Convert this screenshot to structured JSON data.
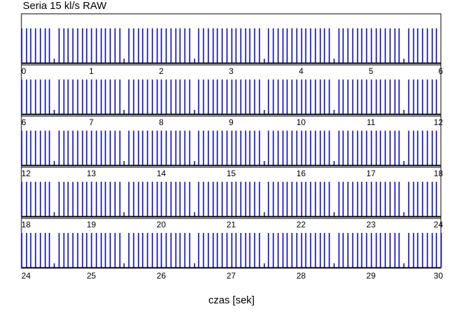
{
  "chart_data": {
    "type": "raster",
    "title": "Seria 15 kl/s RAW",
    "xlabel": "czas [sek]",
    "ylabel": "",
    "colors": {
      "spike": "#0000cc",
      "axis": "#000000",
      "frame": "#000000"
    },
    "grid": false,
    "legend": "none",
    "rows": [
      {
        "xlim": [
          0,
          6
        ],
        "tick_labels": [
          "0",
          "1",
          "2",
          "3",
          "4",
          "5",
          "6"
        ],
        "values": [
          0,
          0.0667,
          0.1333,
          0.2,
          0.2667,
          0.3333,
          0.4,
          0.4667,
          0.5333,
          0.6,
          0.6667,
          0.7333,
          0.8,
          0.8667,
          0.9333,
          1,
          1.0667,
          1.1333,
          1.2,
          1.2667,
          1.3333,
          1.4,
          1.4667,
          1.5333,
          1.6,
          1.6667,
          1.7333,
          1.8,
          1.8667,
          1.9333,
          2,
          2.0667,
          2.1333,
          2.2,
          2.2667,
          2.3333,
          2.4,
          2.4667,
          2.5333,
          2.6,
          2.6667,
          2.7333,
          2.8,
          2.8667,
          2.9333,
          3,
          3.0667,
          3.1333,
          3.2,
          3.2667,
          3.3333,
          3.4,
          3.4667,
          3.5333,
          3.6,
          3.6667,
          3.7333,
          3.8,
          3.8667,
          3.9333,
          4,
          4.0667,
          4.1333,
          4.2,
          4.2667,
          4.3333,
          4.4,
          4.4667,
          4.5333,
          4.6,
          4.6667,
          4.7333,
          4.8,
          4.8667,
          4.9333,
          5,
          5.0667,
          5.1333,
          5.2,
          5.2667,
          5.3333,
          5.4,
          5.4667,
          5.5333,
          5.6,
          5.6667,
          5.7333,
          5.8,
          5.8667,
          5.9333
        ]
      },
      {
        "xlim": [
          6,
          12
        ],
        "tick_labels": [
          "6",
          "7",
          "8",
          "9",
          "10",
          "11",
          "12"
        ],
        "values": [
          6,
          6.0667,
          6.1333,
          6.2,
          6.2667,
          6.3333,
          6.4,
          6.4667,
          6.5333,
          6.6,
          6.6667,
          6.7333,
          6.8,
          6.8667,
          6.9333,
          7,
          7.0667,
          7.1333,
          7.2,
          7.2667,
          7.3333,
          7.4,
          7.4667,
          7.5333,
          7.6,
          7.6667,
          7.7333,
          7.8,
          7.8667,
          7.9333,
          8,
          8.0667,
          8.1333,
          8.2,
          8.2667,
          8.3333,
          8.4,
          8.4667,
          8.5333,
          8.6,
          8.6667,
          8.7333,
          8.8,
          8.8667,
          8.9333,
          9,
          9.0667,
          9.1333,
          9.2,
          9.2667,
          9.3333,
          9.4,
          9.4667,
          9.5333,
          9.6,
          9.6667,
          9.7333,
          9.8,
          9.8667,
          9.9333,
          10,
          10.0667,
          10.1333,
          10.2,
          10.2667,
          10.3333,
          10.4,
          10.4667,
          10.5333,
          10.6,
          10.6667,
          10.7333,
          10.8,
          10.8667,
          10.9333,
          11,
          11.0667,
          11.1333,
          11.2,
          11.2667,
          11.3333,
          11.4,
          11.4667,
          11.5333,
          11.6,
          11.6667,
          11.7333,
          11.8,
          11.8667,
          11.9333
        ]
      },
      {
        "xlim": [
          12,
          18
        ],
        "tick_labels": [
          "12",
          "13",
          "14",
          "15",
          "16",
          "17",
          "18"
        ],
        "values": [
          12,
          12.0667,
          12.1333,
          12.2,
          12.2667,
          12.3333,
          12.4,
          12.4667,
          12.5333,
          12.6,
          12.6667,
          12.7333,
          12.8,
          12.8667,
          12.9333,
          13,
          13.0667,
          13.1333,
          13.2,
          13.2667,
          13.3333,
          13.4,
          13.4667,
          13.5333,
          13.6,
          13.6667,
          13.7333,
          13.8,
          13.8667,
          13.9333,
          14,
          14.0667,
          14.1333,
          14.2,
          14.2667,
          14.3333,
          14.4,
          14.4667,
          14.5333,
          14.6,
          14.6667,
          14.7333,
          14.8,
          14.8667,
          14.9333,
          15,
          15.0667,
          15.1333,
          15.2,
          15.2667,
          15.3333,
          15.4,
          15.4667,
          15.5333,
          15.6,
          15.6667,
          15.7333,
          15.8,
          15.8667,
          15.9333,
          16,
          16.0667,
          16.1333,
          16.2,
          16.2667,
          16.3333,
          16.4,
          16.4667,
          16.5333,
          16.6,
          16.6667,
          16.7333,
          16.8,
          16.8667,
          16.9333,
          17,
          17.0667,
          17.1333,
          17.2,
          17.2667,
          17.3333,
          17.4,
          17.4667,
          17.5333,
          17.6,
          17.6667,
          17.7333,
          17.8,
          17.8667,
          17.9333
        ]
      },
      {
        "xlim": [
          18,
          24
        ],
        "tick_labels": [
          "18",
          "19",
          "20",
          "21",
          "22",
          "23",
          "24"
        ],
        "values": [
          18,
          18.0667,
          18.1333,
          18.2,
          18.2667,
          18.3333,
          18.4,
          18.4667,
          18.5333,
          18.6,
          18.6667,
          18.7333,
          18.8,
          18.8667,
          18.9333,
          19,
          19.0667,
          19.1333,
          19.2,
          19.2667,
          19.3333,
          19.4,
          19.4667,
          19.5333,
          19.6,
          19.6667,
          19.7333,
          19.8,
          19.8667,
          19.9333,
          20,
          20.0667,
          20.1333,
          20.2,
          20.2667,
          20.3333,
          20.4,
          20.4667,
          20.5333,
          20.6,
          20.6667,
          20.7333,
          20.8,
          20.8667,
          20.9333,
          21,
          21.0667,
          21.1333,
          21.2,
          21.2667,
          21.3333,
          21.4,
          21.4667,
          21.5333,
          21.6,
          21.6667,
          21.7333,
          21.8,
          21.8667,
          21.9333,
          22,
          22.0667,
          22.1333,
          22.2,
          22.2667,
          22.3333,
          22.4,
          22.4667,
          22.5333,
          22.6,
          22.6667,
          22.7333,
          22.8,
          22.8667,
          22.9333,
          23,
          23.0667,
          23.1333,
          23.2,
          23.2667,
          23.3333,
          23.4,
          23.4667,
          23.5333,
          23.6,
          23.6667,
          23.7333,
          23.8,
          23.8667,
          23.9333
        ]
      },
      {
        "xlim": [
          24,
          30
        ],
        "tick_labels": [
          "24",
          "25",
          "26",
          "27",
          "28",
          "29",
          "30"
        ],
        "values": [
          24,
          24.0667,
          24.1333,
          24.2,
          24.2667,
          24.3333,
          24.4,
          24.4667,
          24.5333,
          24.6,
          24.6667,
          24.7333,
          24.8,
          24.8667,
          24.9333,
          25,
          25.0667,
          25.1333,
          25.2,
          25.2667,
          25.3333,
          25.4,
          25.4667,
          25.5333,
          25.6,
          25.6667,
          25.7333,
          25.8,
          25.8667,
          25.9333,
          26,
          26.0667,
          26.1333,
          26.2,
          26.2667,
          26.3333,
          26.4,
          26.4667,
          26.5333,
          26.6,
          26.6667,
          26.7333,
          26.8,
          26.8667,
          26.9333,
          27,
          27.0667,
          27.1333,
          27.2,
          27.2667,
          27.3333,
          27.4,
          27.4667,
          27.5333,
          27.6,
          27.6667,
          27.7333,
          27.8,
          27.8667,
          27.9333,
          28,
          28.0667,
          28.1333,
          28.2,
          28.2667,
          28.3333,
          28.4,
          28.4667,
          28.5333,
          28.6,
          28.6667,
          28.7333,
          28.8,
          28.8667,
          28.9333,
          29,
          29.0667,
          29.1333,
          29.2,
          29.2667,
          29.3333,
          29.4,
          29.4667,
          29.5333,
          29.6,
          29.6667,
          29.7333,
          29.8,
          29.8667,
          29.9333,
          30
        ]
      }
    ]
  }
}
